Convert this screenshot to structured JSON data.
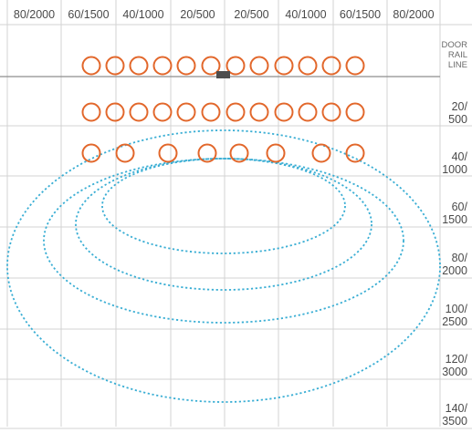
{
  "column_labels": [
    "80/2000",
    "60/1500",
    "40/1000",
    "20/500",
    "20/500",
    "40/1000",
    "60/1500",
    "80/2000"
  ],
  "row_labels": [
    {
      "lines": [
        "DOOR",
        "RAIL",
        "LINE"
      ],
      "style": "small"
    },
    {
      "lines": [
        "20/",
        "500"
      ],
      "style": "normal"
    },
    {
      "lines": [
        "40/",
        "1000"
      ],
      "style": "normal"
    },
    {
      "lines": [
        "60/",
        "1500"
      ],
      "style": "normal"
    },
    {
      "lines": [
        "80/",
        "2000"
      ],
      "style": "normal"
    },
    {
      "lines": [
        "100/",
        "2500"
      ],
      "style": "normal"
    },
    {
      "lines": [
        "120/",
        "3000"
      ],
      "style": "normal"
    },
    {
      "lines": [
        "140/",
        "3500"
      ],
      "style": "normal"
    }
  ],
  "colors": {
    "detection_circle": "#e2672b",
    "coverage_pattern": "#3aaed4",
    "grid": "#d3d3d3",
    "rail_line": "#8e8e8e",
    "sensor_marker": "#4d4d4d",
    "label_text": "#4a4a4a"
  },
  "detection_rows": [
    {
      "row": "door-rail-line",
      "count": 12
    },
    {
      "row": "20/500",
      "count": 12
    },
    {
      "row": "40/1000",
      "count": 8
    }
  ],
  "coverage_pattern_count": 4,
  "sensor_marker": "sensor-marker-icon"
}
